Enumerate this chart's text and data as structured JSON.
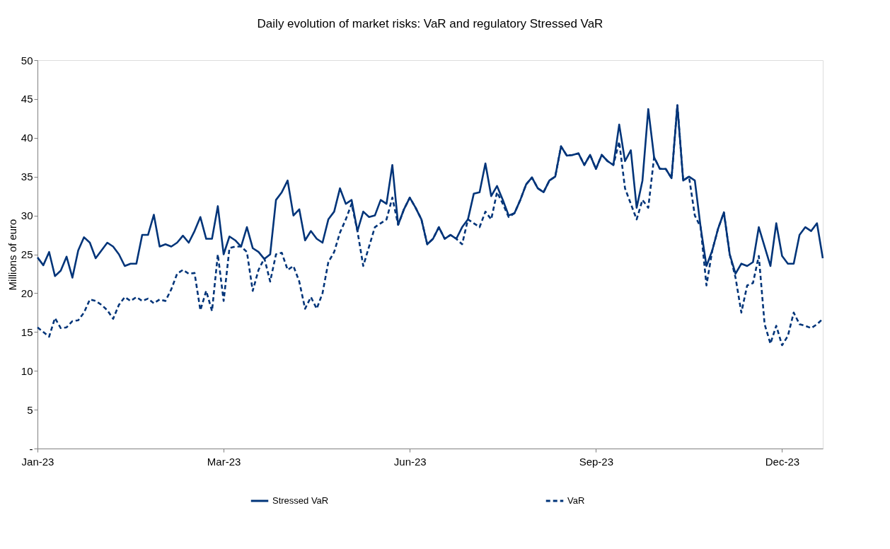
{
  "chart_data": {
    "type": "line",
    "title": "Daily evolution of market risks: VaR and regulatory Stressed VaR",
    "ylabel": "Millions of euro",
    "categories": [
      "Jan-23",
      null,
      null,
      null,
      null,
      null,
      null,
      null,
      null,
      null,
      null,
      null,
      null,
      null,
      null,
      null,
      null,
      null,
      null,
      null,
      null,
      null,
      null,
      null,
      null,
      null,
      null,
      null,
      null,
      null,
      null,
      null,
      "Mar-23",
      null,
      null,
      null,
      null,
      null,
      null,
      null,
      null,
      null,
      null,
      null,
      null,
      null,
      null,
      null,
      null,
      null,
      null,
      null,
      null,
      null,
      null,
      null,
      null,
      null,
      null,
      null,
      null,
      null,
      null,
      null,
      "Jun-23",
      null,
      null,
      null,
      null,
      null,
      null,
      null,
      null,
      null,
      null,
      null,
      null,
      null,
      null,
      null,
      null,
      null,
      null,
      null,
      null,
      null,
      null,
      null,
      null,
      null,
      null,
      null,
      null,
      null,
      null,
      null,
      "Sep-23",
      null,
      null,
      null,
      null,
      null,
      null,
      null,
      null,
      null,
      null,
      null,
      null,
      null,
      null,
      null,
      null,
      null,
      null,
      null,
      null,
      null,
      null,
      null,
      null,
      null,
      null,
      null,
      null,
      null,
      null,
      null,
      "Dec-23",
      null,
      null,
      null,
      null,
      null,
      null,
      null
    ],
    "series": [
      {
        "name": "Stressed VaR",
        "color": "#003479",
        "line_style": "solid",
        "values": [
          24.6,
          23.6,
          25.3,
          22.2,
          22.9,
          24.7,
          22.0,
          25.5,
          27.2,
          26.5,
          24.5,
          25.5,
          26.5,
          26.0,
          25.0,
          23.5,
          23.8,
          23.8,
          27.5,
          27.5,
          30.1,
          26.0,
          26.3,
          26.0,
          26.5,
          27.4,
          26.5,
          28.0,
          29.8,
          27.0,
          27.0,
          31.2,
          25.0,
          27.3,
          26.8,
          26.0,
          28.5,
          25.8,
          25.3,
          24.4,
          25.0,
          32.0,
          33.0,
          34.5,
          30.0,
          30.8,
          26.8,
          28.0,
          27.0,
          26.5,
          29.5,
          30.5,
          33.5,
          31.5,
          32.0,
          28.0,
          30.5,
          29.8,
          30.0,
          32.0,
          31.5,
          36.5,
          28.8,
          30.8,
          32.3,
          31.0,
          29.5,
          26.3,
          27.0,
          28.5,
          27.0,
          27.5,
          27.0,
          28.5,
          29.5,
          32.8,
          33.0,
          36.7,
          32.5,
          33.8,
          32.0,
          30.0,
          30.3,
          32.0,
          34.0,
          34.9,
          33.5,
          33.0,
          34.5,
          35.0,
          38.9,
          37.7,
          37.8,
          38.0,
          36.5,
          37.8,
          36.0,
          37.8,
          37.0,
          36.5,
          41.7,
          37.0,
          38.4,
          31.0,
          34.5,
          43.7,
          37.5,
          36.0,
          36.0,
          34.8,
          44.2,
          34.5,
          35.0,
          34.5,
          28.5,
          23.5,
          25.5,
          28.3,
          30.4,
          25.0,
          22.5,
          23.8,
          23.5,
          24.0,
          28.5,
          26.0,
          23.5,
          29.0,
          24.8,
          23.8,
          23.8,
          27.5,
          28.5,
          28.0,
          29.0,
          24.5
        ]
      },
      {
        "name": "VaR",
        "color": "#003479",
        "line_style": "dashed",
        "values": [
          15.6,
          15.0,
          14.4,
          16.8,
          15.5,
          15.6,
          16.4,
          16.5,
          17.5,
          19.2,
          19.0,
          18.5,
          17.8,
          16.7,
          18.5,
          19.5,
          19.0,
          19.5,
          19.0,
          19.3,
          18.7,
          19.2,
          19.0,
          20.5,
          22.5,
          23.0,
          22.5,
          22.6,
          17.8,
          20.3,
          17.7,
          25.0,
          19.0,
          25.8,
          26.0,
          26.0,
          25.3,
          20.3,
          23.0,
          24.5,
          21.5,
          25.0,
          25.2,
          23.0,
          23.5,
          21.5,
          18.0,
          19.5,
          18.0,
          20.0,
          24.0,
          25.3,
          27.8,
          29.5,
          31.5,
          28.0,
          23.5,
          26.0,
          28.5,
          29.0,
          29.5,
          32.3,
          28.8,
          30.8,
          32.3,
          31.0,
          29.5,
          26.3,
          27.0,
          28.5,
          27.0,
          27.5,
          27.0,
          26.3,
          29.5,
          29.0,
          28.5,
          30.5,
          29.5,
          33.0,
          31.5,
          29.8,
          30.3,
          32.0,
          34.0,
          34.9,
          33.5,
          33.0,
          34.5,
          35.0,
          38.9,
          37.7,
          37.8,
          38.0,
          36.5,
          37.8,
          36.0,
          37.8,
          37.0,
          36.5,
          39.5,
          33.5,
          31.5,
          29.5,
          32.0,
          31.0,
          37.5,
          36.0,
          36.0,
          34.8,
          44.2,
          34.5,
          35.0,
          30.0,
          28.5,
          21.0,
          25.5,
          28.3,
          30.4,
          25.0,
          22.0,
          17.5,
          21.0,
          21.3,
          24.8,
          16.0,
          13.5,
          15.8,
          13.3,
          14.5,
          17.5,
          16.0,
          15.8,
          15.5,
          16.0,
          16.7
        ]
      }
    ],
    "ylim": [
      0,
      50
    ],
    "yticks": [
      {
        "value": 0,
        "label": "-"
      },
      5,
      10,
      15,
      20,
      25,
      30,
      35,
      40,
      45,
      50
    ],
    "grid": false,
    "legend": "bottom"
  }
}
